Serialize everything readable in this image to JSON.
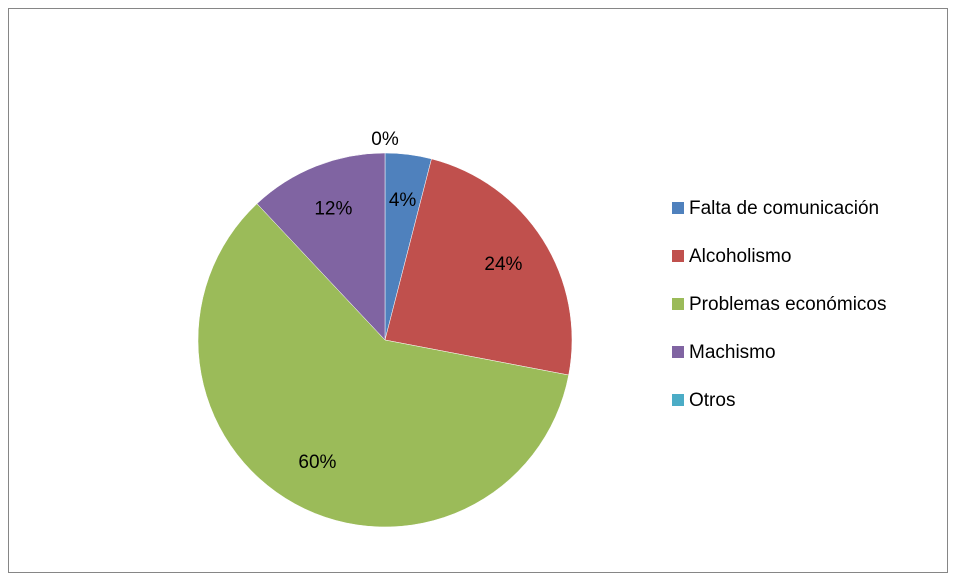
{
  "chart_data": {
    "type": "pie",
    "categories": [
      "Falta de comunicación",
      "Alcoholismo",
      "Problemas económicos",
      "Machismo",
      "Otros"
    ],
    "values": [
      4,
      24,
      60,
      12,
      0
    ],
    "value_labels": [
      "4%",
      "24%",
      "60%",
      "12%",
      "0%"
    ],
    "colors": [
      "#4f81bd",
      "#c0504d",
      "#9bbb59",
      "#8064a2",
      "#4bacc6"
    ],
    "legend": "right"
  }
}
